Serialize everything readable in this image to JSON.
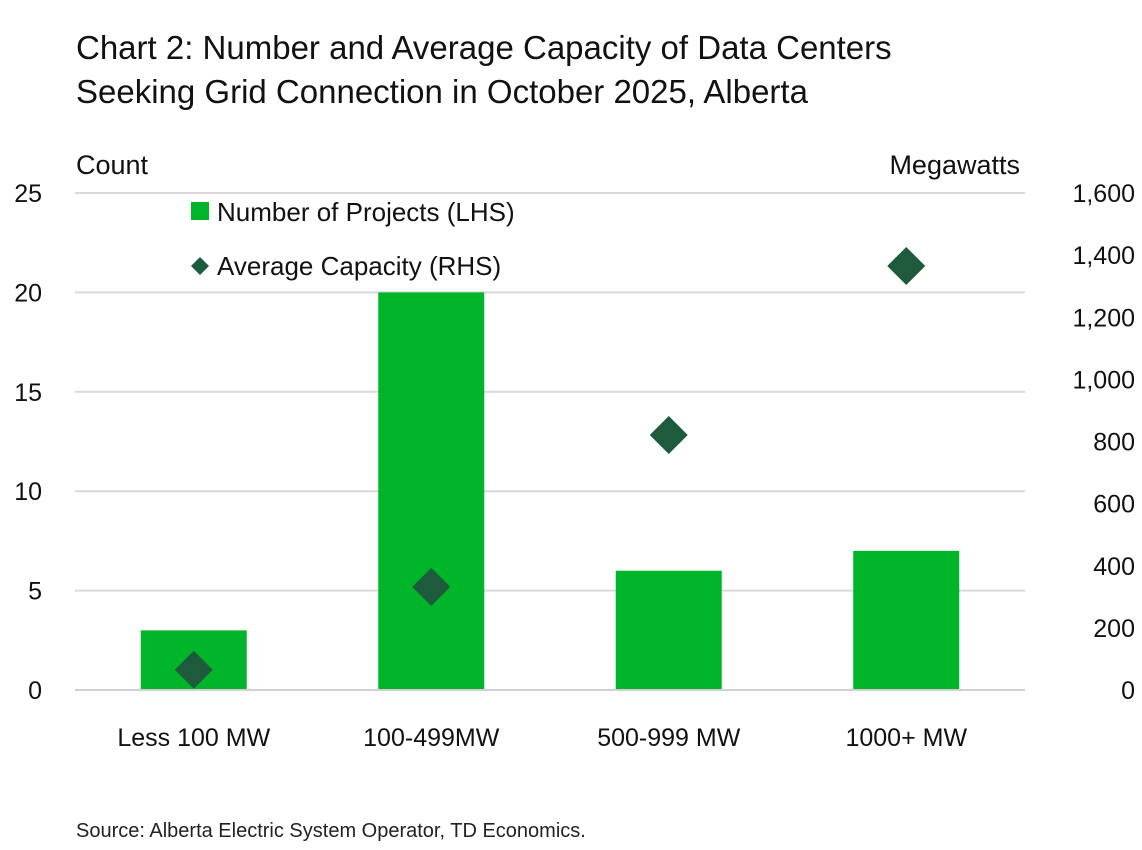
{
  "title_line1": "Chart 2: Number and Average Capacity of Data Centers",
  "title_line2": "Seeking Grid Connection in October 2025, Alberta",
  "source": "Source: Alberta Electric System Operator, TD Economics.",
  "chart_data": {
    "type": "bar",
    "categories": [
      "Less 100 MW",
      "100-499MW",
      "500-999 MW",
      "1000+ MW"
    ],
    "series": [
      {
        "name": "Number of Projects (LHS)",
        "type": "bar",
        "axis": "left",
        "values": [
          3,
          20,
          6,
          7
        ],
        "color": "#00b52a"
      },
      {
        "name": "Average Capacity (RHS)",
        "type": "scatter",
        "marker": "diamond",
        "axis": "right",
        "values": [
          65,
          332,
          821,
          1365
        ],
        "color": "#1e5a3c"
      }
    ],
    "ylabel": "Count",
    "ylabel_right": "Megawatts",
    "ylim": [
      0,
      25
    ],
    "ylim_right": [
      0,
      1600
    ],
    "yticks": [
      "0",
      "5",
      "10",
      "15",
      "20",
      "25"
    ],
    "yticks_right": [
      "0",
      "200",
      "400",
      "600",
      "800",
      "1,000",
      "1,200",
      "1,400",
      "1,600"
    ],
    "grid": true,
    "legend_placement": "top-left"
  }
}
